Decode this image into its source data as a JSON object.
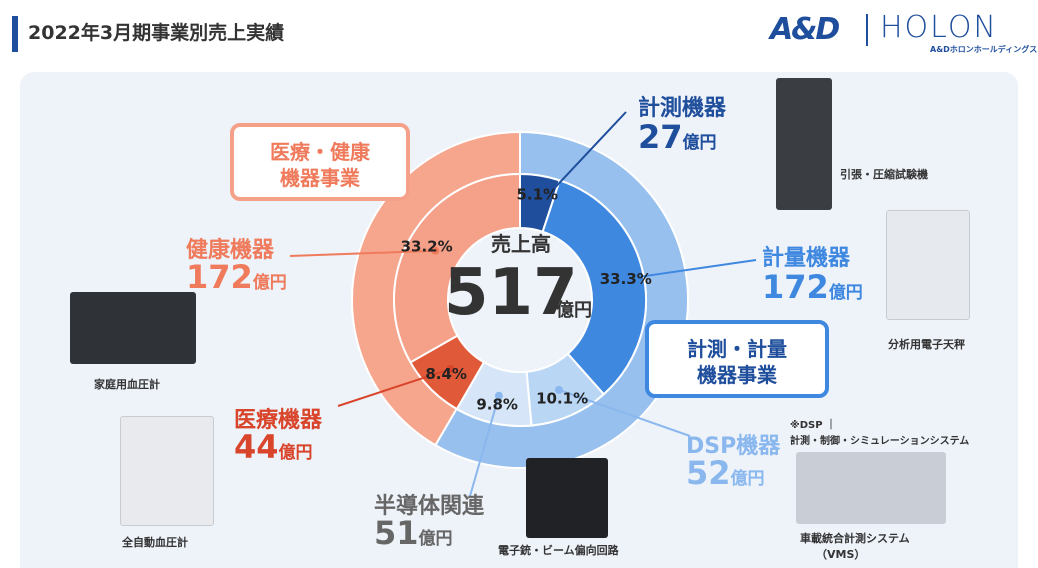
{
  "header": {
    "title": "2022年3月期事業別売上実績",
    "logo_and": "A&D",
    "logo_holon": "HOLON",
    "logo_sub": "A&Dホロンホールディングス"
  },
  "center": {
    "label": "売上高",
    "value": "517",
    "unit": "億円"
  },
  "chart_data": [
    {
      "type": "pie",
      "ring": "inner",
      "categories": [
        "計測機器",
        "計量機器",
        "DSP機器",
        "半導体関連",
        "医療機器",
        "健康機器"
      ],
      "values": [
        5.1,
        33.3,
        10.1,
        9.8,
        8.4,
        33.2
      ],
      "labels": [
        "5.1%",
        "33.3%",
        "10.1%",
        "9.8%",
        "8.4%",
        "33.2%"
      ],
      "amounts": [
        27,
        172,
        52,
        51,
        44,
        172
      ],
      "colors": [
        "#1f4e9c",
        "#3f88e0",
        "#bad6f5",
        "#d6e6f8",
        "#e05a3a",
        "#f5a189"
      ]
    },
    {
      "type": "pie",
      "ring": "outer",
      "categories": [
        "計測・計量機器事業",
        "医療・健康機器事業"
      ],
      "values": [
        58.4,
        41.6
      ],
      "colors": [
        "#97c0ee",
        "#f7a68e"
      ]
    }
  ],
  "boxes": {
    "medical_health": "医療・健康\n機器事業",
    "measuring_weighing": "計測・計量\n機器事業"
  },
  "segments": {
    "keisoku": {
      "name": "計測機器",
      "amount": "27",
      "unit": "億円"
    },
    "keiryo": {
      "name": "計量機器",
      "amount": "172",
      "unit": "億円"
    },
    "dsp": {
      "name": "DSP機器",
      "amount": "52",
      "unit": "億円"
    },
    "semi": {
      "name": "半導体関連",
      "amount": "51",
      "unit": "億円"
    },
    "medical": {
      "name": "医療機器",
      "amount": "44",
      "unit": "億円"
    },
    "health": {
      "name": "健康機器",
      "amount": "172",
      "unit": "億円"
    }
  },
  "captions": {
    "tensile": "引張・圧縮試験機",
    "balance": "分析用電子天秤",
    "home_bp": "家庭用血圧計",
    "auto_bp": "全自動血圧計",
    "ebeam": "電子銃・ビーム偏向回路",
    "vms1": "車載統合計測システム",
    "vms2": "（VMS）",
    "dsp_note1": "※DSP ｜",
    "dsp_note2": "計測・制御・シミュレーションシステム"
  },
  "colors": {
    "blue_dark": "#1f4e9c",
    "blue": "#3f88e0",
    "blue_light": "#8ab8ee",
    "gray": "#666666",
    "red": "#d9452b",
    "salmon": "#ef7b5c"
  }
}
